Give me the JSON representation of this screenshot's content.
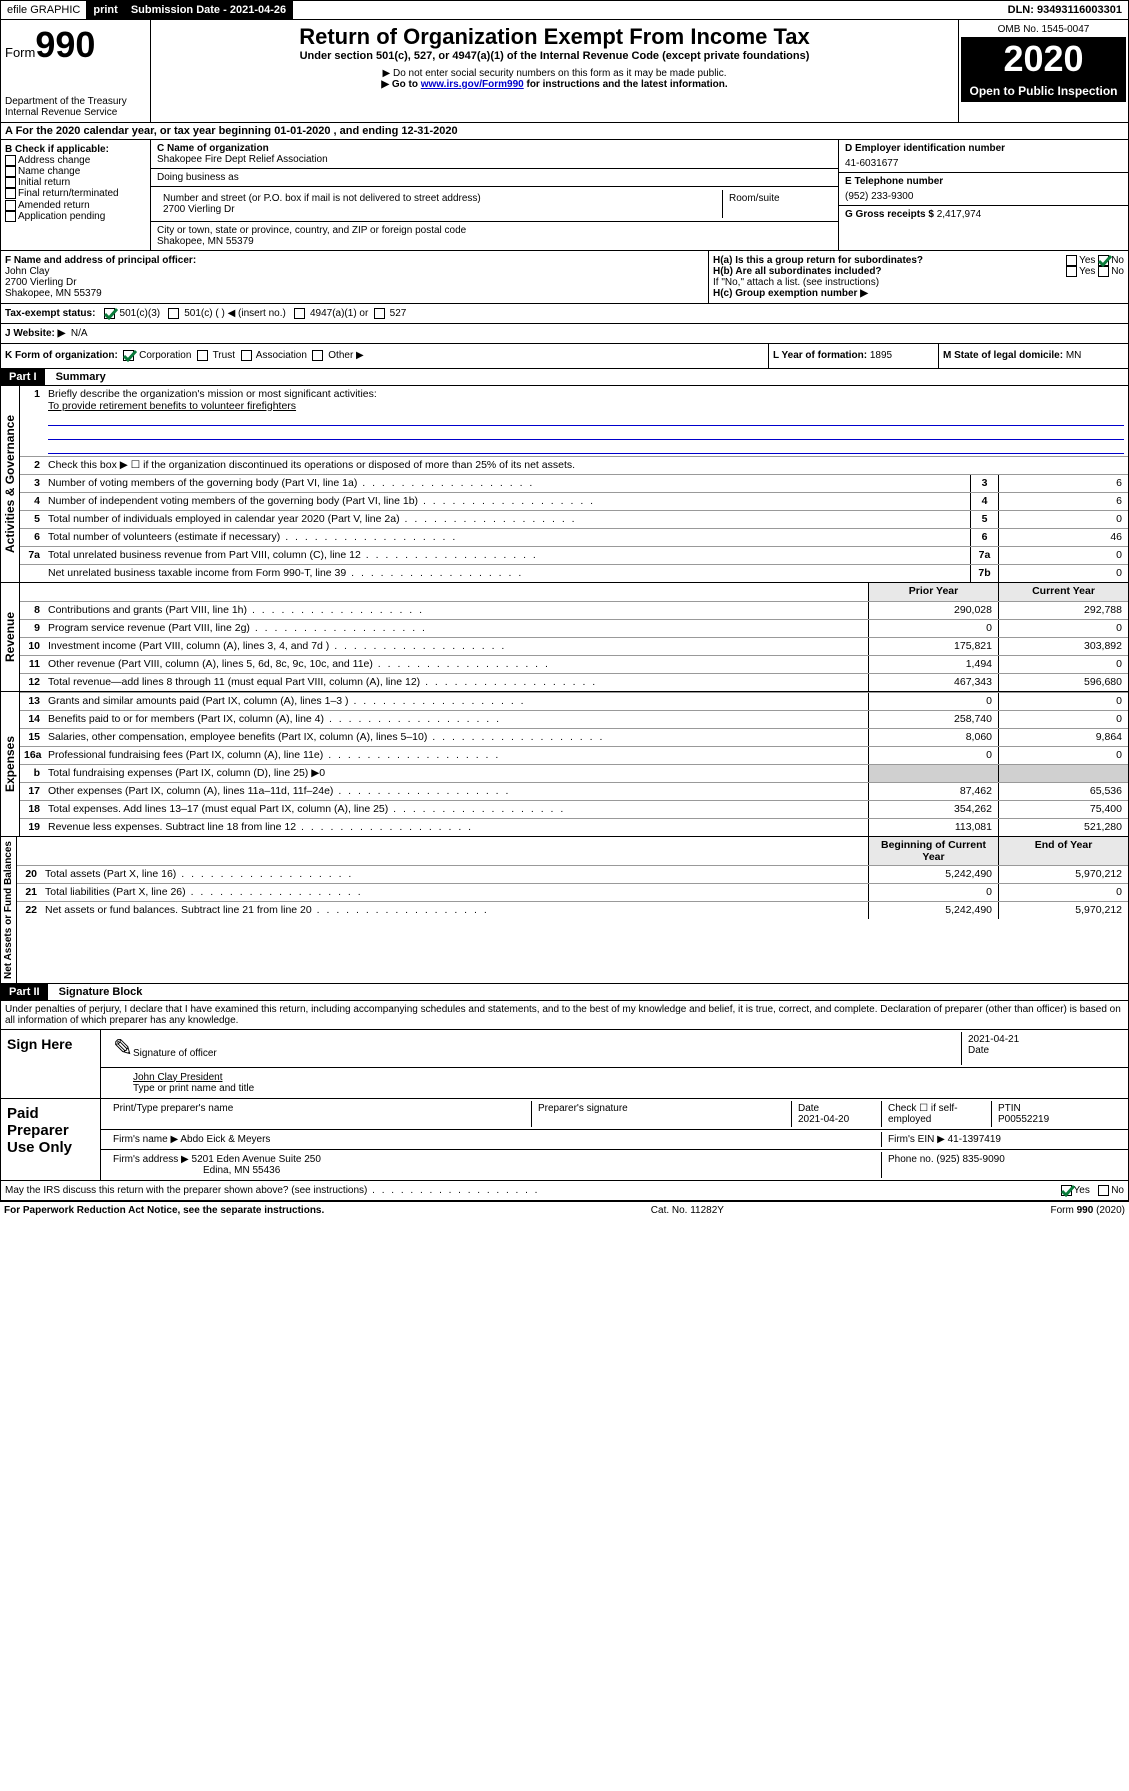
{
  "topbar": {
    "efile": "efile GRAPHIC",
    "print": "print",
    "submission_label": "Submission Date - ",
    "submission_date": "2021-04-26",
    "dln_label": "DLN: ",
    "dln": "93493116003301"
  },
  "header": {
    "form_word": "Form",
    "form_num": "990",
    "dept": "Department of the Treasury",
    "irs": "Internal Revenue Service",
    "title": "Return of Organization Exempt From Income Tax",
    "sub1": "Under section 501(c), 527, or 4947(a)(1) of the Internal Revenue Code (except private foundations)",
    "sub2": "▶ Do not enter social security numbers on this form as it may be made public.",
    "sub3_pre": "▶ Go to ",
    "sub3_link": "www.irs.gov/Form990",
    "sub3_post": " for instructions and the latest information.",
    "omb": "OMB No. 1545-0047",
    "year": "2020",
    "open": "Open to Public Inspection"
  },
  "section_a": "A For the 2020 calendar year, or tax year beginning 01-01-2020   , and ending 12-31-2020",
  "box_b": {
    "label": "B Check if applicable:",
    "items": [
      "Address change",
      "Name change",
      "Initial return",
      "Final return/terminated",
      "Amended return",
      "Application pending"
    ]
  },
  "box_c": {
    "name_label": "C Name of organization",
    "name": "Shakopee Fire Dept Relief Association",
    "dba_label": "Doing business as",
    "dba": "",
    "addr_label": "Number and street (or P.O. box if mail is not delivered to street address)",
    "room_label": "Room/suite",
    "addr": "2700 Vierling Dr",
    "city_label": "City or town, state or province, country, and ZIP or foreign postal code",
    "city": "Shakopee, MN  55379"
  },
  "box_d": {
    "label": "D Employer identification number",
    "val": "41-6031677"
  },
  "box_e": {
    "label": "E Telephone number",
    "val": "(952) 233-9300"
  },
  "box_g": {
    "label": "G Gross receipts $ ",
    "val": "2,417,974"
  },
  "box_f": {
    "label": "F  Name and address of principal officer:",
    "name": "John Clay",
    "addr1": "2700 Vierling Dr",
    "addr2": "Shakopee, MN  55379"
  },
  "box_h": {
    "ha": "H(a)  Is this a group return for subordinates?",
    "hb": "H(b)  Are all subordinates included?",
    "hb_note": "If \"No,\" attach a list. (see instructions)",
    "hc": "H(c)  Group exemption number ▶",
    "yes": "Yes",
    "no": "No"
  },
  "box_i": {
    "label": "Tax-exempt status:",
    "c3": "501(c)(3)",
    "c": "501(c) (  ) ◀ (insert no.)",
    "a1": "4947(a)(1) or",
    "s527": "527"
  },
  "box_j": {
    "label": "J   Website: ▶",
    "val": "N/A"
  },
  "box_k": {
    "label": "K Form of organization:",
    "corp": "Corporation",
    "trust": "Trust",
    "assoc": "Association",
    "other": "Other ▶"
  },
  "box_l": {
    "label": "L Year of formation: ",
    "val": "1895"
  },
  "box_m": {
    "label": "M State of legal domicile: ",
    "val": "MN"
  },
  "part1": {
    "hdr": "Part I",
    "title": "Summary"
  },
  "summary": {
    "q1_label": "Briefly describe the organization's mission or most significant activities:",
    "q1_val": "To provide retirement benefits to volunteer firefighters",
    "q2": "Check this box ▶ ☐  if the organization discontinued its operations or disposed of more than 25% of its net assets.",
    "lines_simple": [
      {
        "n": "3",
        "d": "Number of voting members of the governing body (Part VI, line 1a)",
        "b": "3",
        "v": "6"
      },
      {
        "n": "4",
        "d": "Number of independent voting members of the governing body (Part VI, line 1b)",
        "b": "4",
        "v": "6"
      },
      {
        "n": "5",
        "d": "Total number of individuals employed in calendar year 2020 (Part V, line 2a)",
        "b": "5",
        "v": "0"
      },
      {
        "n": "6",
        "d": "Total number of volunteers (estimate if necessary)",
        "b": "6",
        "v": "46"
      },
      {
        "n": "7a",
        "d": "Total unrelated business revenue from Part VIII, column (C), line 12",
        "b": "7a",
        "v": "0"
      },
      {
        "n": "",
        "d": "Net unrelated business taxable income from Form 990-T, line 39",
        "b": "7b",
        "v": "0"
      }
    ],
    "col_hdr_prior": "Prior Year",
    "col_hdr_curr": "Current Year",
    "rev": [
      {
        "n": "8",
        "d": "Contributions and grants (Part VIII, line 1h)",
        "p": "290,028",
        "c": "292,788"
      },
      {
        "n": "9",
        "d": "Program service revenue (Part VIII, line 2g)",
        "p": "0",
        "c": "0"
      },
      {
        "n": "10",
        "d": "Investment income (Part VIII, column (A), lines 3, 4, and 7d )",
        "p": "175,821",
        "c": "303,892"
      },
      {
        "n": "11",
        "d": "Other revenue (Part VIII, column (A), lines 5, 6d, 8c, 9c, 10c, and 11e)",
        "p": "1,494",
        "c": "0"
      },
      {
        "n": "12",
        "d": "Total revenue—add lines 8 through 11 (must equal Part VIII, column (A), line 12)",
        "p": "467,343",
        "c": "596,680"
      }
    ],
    "exp": [
      {
        "n": "13",
        "d": "Grants and similar amounts paid (Part IX, column (A), lines 1–3 )",
        "p": "0",
        "c": "0"
      },
      {
        "n": "14",
        "d": "Benefits paid to or for members (Part IX, column (A), line 4)",
        "p": "258,740",
        "c": "0"
      },
      {
        "n": "15",
        "d": "Salaries, other compensation, employee benefits (Part IX, column (A), lines 5–10)",
        "p": "8,060",
        "c": "9,864"
      },
      {
        "n": "16a",
        "d": "Professional fundraising fees (Part IX, column (A), line 11e)",
        "p": "0",
        "c": "0"
      },
      {
        "n": "b",
        "d": "Total fundraising expenses (Part IX, column (D), line 25) ▶0",
        "p": "",
        "c": "",
        "shade": true
      },
      {
        "n": "17",
        "d": "Other expenses (Part IX, column (A), lines 11a–11d, 11f–24e)",
        "p": "87,462",
        "c": "65,536"
      },
      {
        "n": "18",
        "d": "Total expenses. Add lines 13–17 (must equal Part IX, column (A), line 25)",
        "p": "354,262",
        "c": "75,400"
      },
      {
        "n": "19",
        "d": "Revenue less expenses. Subtract line 18 from line 12",
        "p": "113,081",
        "c": "521,280"
      }
    ],
    "col_hdr_beg": "Beginning of Current Year",
    "col_hdr_end": "End of Year",
    "net": [
      {
        "n": "20",
        "d": "Total assets (Part X, line 16)",
        "p": "5,242,490",
        "c": "5,970,212"
      },
      {
        "n": "21",
        "d": "Total liabilities (Part X, line 26)",
        "p": "0",
        "c": "0"
      },
      {
        "n": "22",
        "d": "Net assets or fund balances. Subtract line 21 from line 20",
        "p": "5,242,490",
        "c": "5,970,212"
      }
    ],
    "tab_gov": "Activities & Governance",
    "tab_rev": "Revenue",
    "tab_exp": "Expenses",
    "tab_net": "Net Assets or Fund Balances"
  },
  "part2": {
    "hdr": "Part II",
    "title": "Signature Block"
  },
  "perjury": "Under penalties of perjury, I declare that I have examined this return, including accompanying schedules and statements, and to the best of my knowledge and belief, it is true, correct, and complete. Declaration of preparer (other than officer) is based on all information of which preparer has any knowledge.",
  "sign": {
    "here": "Sign Here",
    "sig_officer": "Signature of officer",
    "date": "2021-04-21",
    "date_label": "Date",
    "printed": "John Clay President",
    "printed_label": "Type or print name and title"
  },
  "paid": {
    "label": "Paid Preparer Use Only",
    "prep_name_label": "Print/Type preparer's name",
    "prep_sig_label": "Preparer's signature",
    "prep_date_label": "Date",
    "prep_date": "2021-04-20",
    "check_label": "Check ☐ if self-employed",
    "ptin_label": "PTIN",
    "ptin": "P00552219",
    "firm_name_label": "Firm's name      ▶ ",
    "firm_name": "Abdo Eick & Meyers",
    "firm_ein_label": "Firm's EIN ▶ ",
    "firm_ein": "41-1397419",
    "firm_addr_label": "Firm's address ▶ ",
    "firm_addr1": "5201 Eden Avenue Suite 250",
    "firm_addr2": "Edina, MN  55436",
    "phone_label": "Phone no. ",
    "phone": "(925) 835-9090"
  },
  "discuss": "May the IRS discuss this return with the preparer shown above? (see instructions)",
  "discuss_yes": "Yes",
  "discuss_no": "No",
  "footer": {
    "left": "For Paperwork Reduction Act Notice, see the separate instructions.",
    "mid": "Cat. No. 11282Y",
    "right": "Form 990 (2020)"
  },
  "labels": {
    "n1": "1",
    "n2": "2",
    "nb": "b"
  }
}
